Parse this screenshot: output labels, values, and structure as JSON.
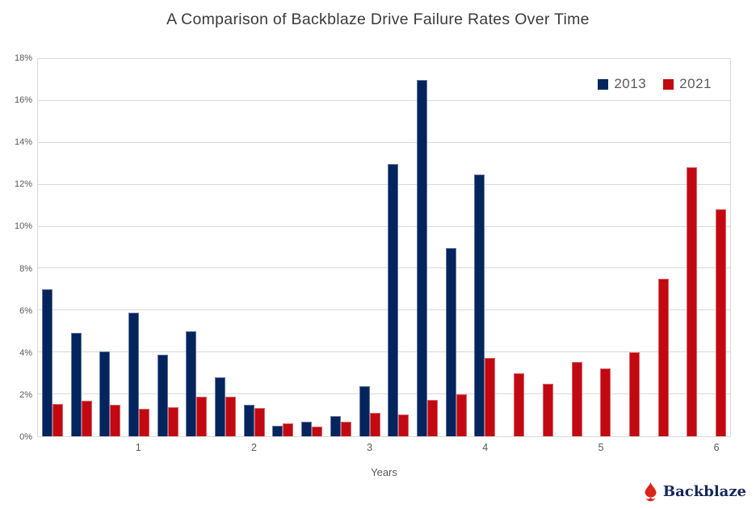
{
  "title": "A Comparison of Backblaze Drive Failure Rates Over Time",
  "colors": {
    "navy": "#04245e",
    "red": "#c20811",
    "grid": "#d9d9d9",
    "axis_text": "#595959",
    "title_text": "#3b3b3b",
    "logo_text": "#14275a",
    "logo_flame": "#d9261c"
  },
  "legend": {
    "entries": [
      {
        "label": "2013",
        "color": "#04245e"
      },
      {
        "label": "2021",
        "color": "#c20811"
      }
    ],
    "position": "top-right"
  },
  "footer": {
    "logo_text": "Backblaze",
    "logo_icon": "backblaze-flame-icon"
  },
  "chart_data": {
    "type": "bar",
    "title": "A Comparison of Backblaze Drive Failure Rates Over Time",
    "xlabel": "Years",
    "ylabel": "",
    "x": [
      0.25,
      0.5,
      0.75,
      1.0,
      1.25,
      1.5,
      1.75,
      2.0,
      2.25,
      2.5,
      2.75,
      3.0,
      3.25,
      3.5,
      3.75,
      4.0,
      4.25,
      4.5,
      4.75,
      5.0,
      5.25,
      5.5,
      5.75,
      6.0
    ],
    "x_tick_labels": [
      "1",
      "2",
      "3",
      "4",
      "5",
      "6"
    ],
    "x_tick_positions": [
      1,
      2,
      3,
      4,
      5,
      6
    ],
    "y_tick_labels": [
      "0%",
      "2%",
      "4%",
      "6%",
      "8%",
      "10%",
      "12%",
      "14%",
      "16%",
      "18%"
    ],
    "ylim": [
      0,
      18
    ],
    "grid": true,
    "units": "percent_failure_rate",
    "legend_position": "top-right",
    "series": [
      {
        "name": "2013",
        "color": "#04245e",
        "values": [
          7.0,
          4.95,
          4.05,
          5.9,
          3.9,
          5.0,
          2.8,
          1.5,
          0.5,
          0.7,
          0.95,
          2.4,
          13.0,
          17.0,
          9.0,
          12.5,
          null,
          null,
          null,
          null,
          null,
          null,
          null,
          null
        ]
      },
      {
        "name": "2021",
        "color": "#c20811",
        "values": [
          1.55,
          1.7,
          1.5,
          1.3,
          1.4,
          1.9,
          1.9,
          1.35,
          0.6,
          0.45,
          0.7,
          1.1,
          1.05,
          1.75,
          2.0,
          3.75,
          3.0,
          2.5,
          3.55,
          3.25,
          4.0,
          7.5,
          12.85,
          10.85
        ]
      }
    ]
  }
}
